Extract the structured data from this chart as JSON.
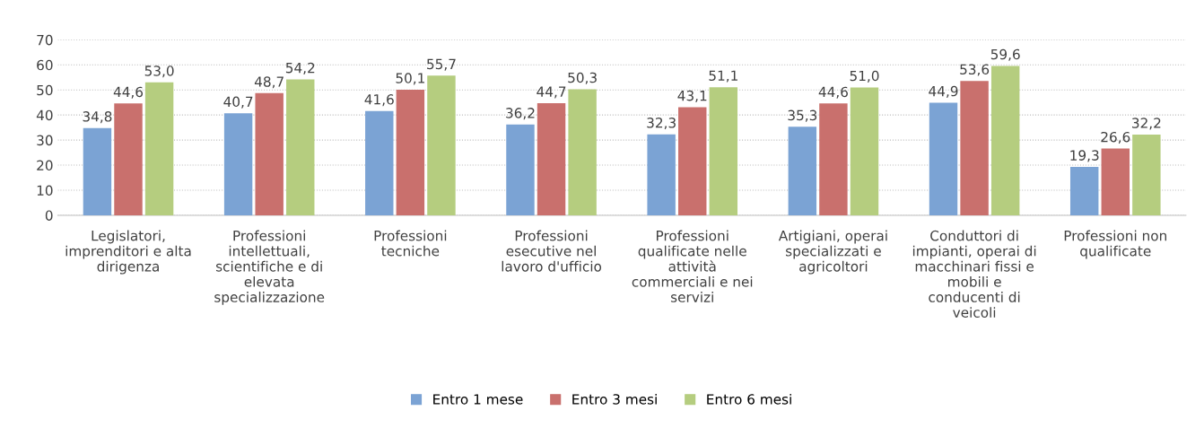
{
  "chart_data": {
    "type": "bar",
    "categories": [
      "Legislatori,\nimprenditori e alta\ndirigenza",
      "Professioni\nintellettuali,\nscientifiche e di\nelevata\nspecializzazione",
      "Professioni\ntecniche",
      "Professioni\nesecutive nel\nlavoro d'ufficio",
      "Professioni\nqualificate nelle\nattività\ncommerciali e nei\nservizi",
      "Artigiani, operai\nspecializzati e\nagricoltori",
      "Conduttori di\nimpianti, operai di\nmacchinari fissi e\nmobili e\nconducenti di\nveicoli",
      "Professioni non\nqualificate"
    ],
    "series": [
      {
        "name": "Entro 1 mese",
        "color": "#7ba3d4",
        "values": [
          34.8,
          40.7,
          41.6,
          36.2,
          32.3,
          35.3,
          44.9,
          19.3
        ],
        "value_labels": [
          "34,8",
          "40,7",
          "41,6",
          "36,2",
          "32,3",
          "35,3",
          "44,9",
          "19,3"
        ]
      },
      {
        "name": "Entro 3 mesi",
        "color": "#c9706d",
        "values": [
          44.6,
          48.7,
          50.1,
          44.7,
          43.1,
          44.6,
          53.6,
          26.6
        ],
        "value_labels": [
          "44,6",
          "48,7",
          "50,1",
          "44,7",
          "43,1",
          "44,6",
          "53,6",
          "26,6"
        ]
      },
      {
        "name": "Entro 6 mesi",
        "color": "#b5cd7f",
        "values": [
          53.0,
          54.2,
          55.7,
          50.3,
          51.1,
          51.0,
          59.6,
          32.2
        ],
        "value_labels": [
          "53,0",
          "54,2",
          "55,7",
          "50,3",
          "51,1",
          "51,0",
          "59,6",
          "32,2"
        ]
      }
    ],
    "ylim": [
      0,
      70
    ],
    "yticks": [
      0,
      10,
      20,
      30,
      40,
      50,
      60,
      70
    ],
    "grid": "y",
    "legend": "bottom"
  }
}
